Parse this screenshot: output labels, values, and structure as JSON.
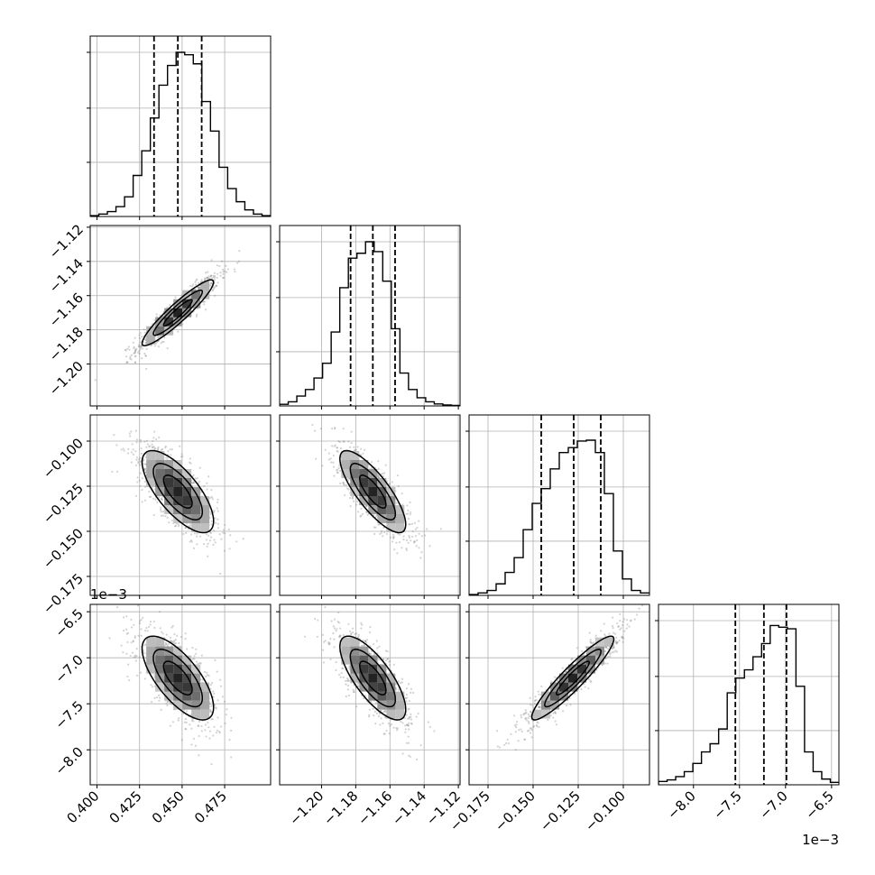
{
  "chart_data": {
    "type": "corner",
    "grid": true,
    "parameters": [
      {
        "index": 0,
        "range": [
          0.396,
          0.502
        ],
        "ticks": [
          0.4,
          0.425,
          0.45,
          0.475
        ],
        "tick_labels": [
          "0.400",
          "0.425",
          "0.450",
          "0.475"
        ],
        "offset_text": "",
        "quantiles": [
          0.4335,
          0.4475,
          0.4615
        ],
        "histogram": [
          0.005,
          0.015,
          0.03,
          0.06,
          0.12,
          0.25,
          0.4,
          0.6,
          0.8,
          0.92,
          1.0,
          0.985,
          0.93,
          0.7,
          0.52,
          0.3,
          0.17,
          0.09,
          0.04,
          0.015,
          0.005
        ],
        "mean": 0.4475,
        "sd": 0.012
      },
      {
        "index": 1,
        "range": [
          -1.2245,
          -1.119
        ],
        "ticks": [
          -1.2,
          -1.18,
          -1.16,
          -1.14,
          -1.12
        ],
        "tick_labels": [
          "−1.20",
          "−1.18",
          "−1.16",
          "−1.14",
          "−1.12"
        ],
        "offset_text": "",
        "quantiles": [
          -1.183,
          -1.17,
          -1.157
        ],
        "histogram": [
          0.01,
          0.025,
          0.06,
          0.1,
          0.17,
          0.26,
          0.45,
          0.72,
          0.9,
          0.93,
          1.0,
          0.94,
          0.76,
          0.47,
          0.2,
          0.1,
          0.05,
          0.025,
          0.012,
          0.006,
          0.003
        ],
        "mean": -1.17,
        "sd": 0.011
      },
      {
        "index": 2,
        "range": [
          -0.1855,
          -0.0855
        ],
        "ticks": [
          -0.175,
          -0.15,
          -0.125,
          -0.1
        ],
        "tick_labels": [
          "−0.175",
          "−0.150",
          "−0.125",
          "−0.100"
        ],
        "offset_text": "",
        "quantiles": [
          -0.1455,
          -0.1275,
          -0.1125
        ],
        "histogram": [
          0.005,
          0.015,
          0.03,
          0.07,
          0.14,
          0.23,
          0.4,
          0.56,
          0.65,
          0.77,
          0.87,
          0.9,
          0.94,
          0.945,
          0.87,
          0.62,
          0.27,
          0.1,
          0.03,
          0.015
        ],
        "mean": -0.128,
        "sd": 0.013
      },
      {
        "index": 3,
        "range": [
          -8.38,
          -6.42
        ],
        "ticks": [
          -8.0,
          -7.5,
          -7.0,
          -6.5
        ],
        "tick_labels": [
          "−8.0",
          "−7.5",
          "−7.0",
          "−6.5"
        ],
        "offset_text": "1e−3",
        "quantiles": [
          -7.545,
          -7.235,
          -6.99
        ],
        "histogram": [
          0.02,
          0.03,
          0.05,
          0.08,
          0.13,
          0.2,
          0.25,
          0.34,
          0.56,
          0.65,
          0.7,
          0.78,
          0.86,
          0.97,
          0.96,
          0.95,
          0.6,
          0.2,
          0.08,
          0.035,
          0.015
        ],
        "mean": -7.22,
        "sd": 0.26
      }
    ],
    "correlations": {
      "1_0": 0.93,
      "2_0": -0.72,
      "2_1": -0.8,
      "3_0": -0.7,
      "3_1": -0.75,
      "3_2": 0.93
    },
    "row_offset_text": {
      "3": "1e−3"
    },
    "colors": {
      "line": "#000000",
      "grid": "#b0b0b0",
      "points": "#808080"
    }
  }
}
